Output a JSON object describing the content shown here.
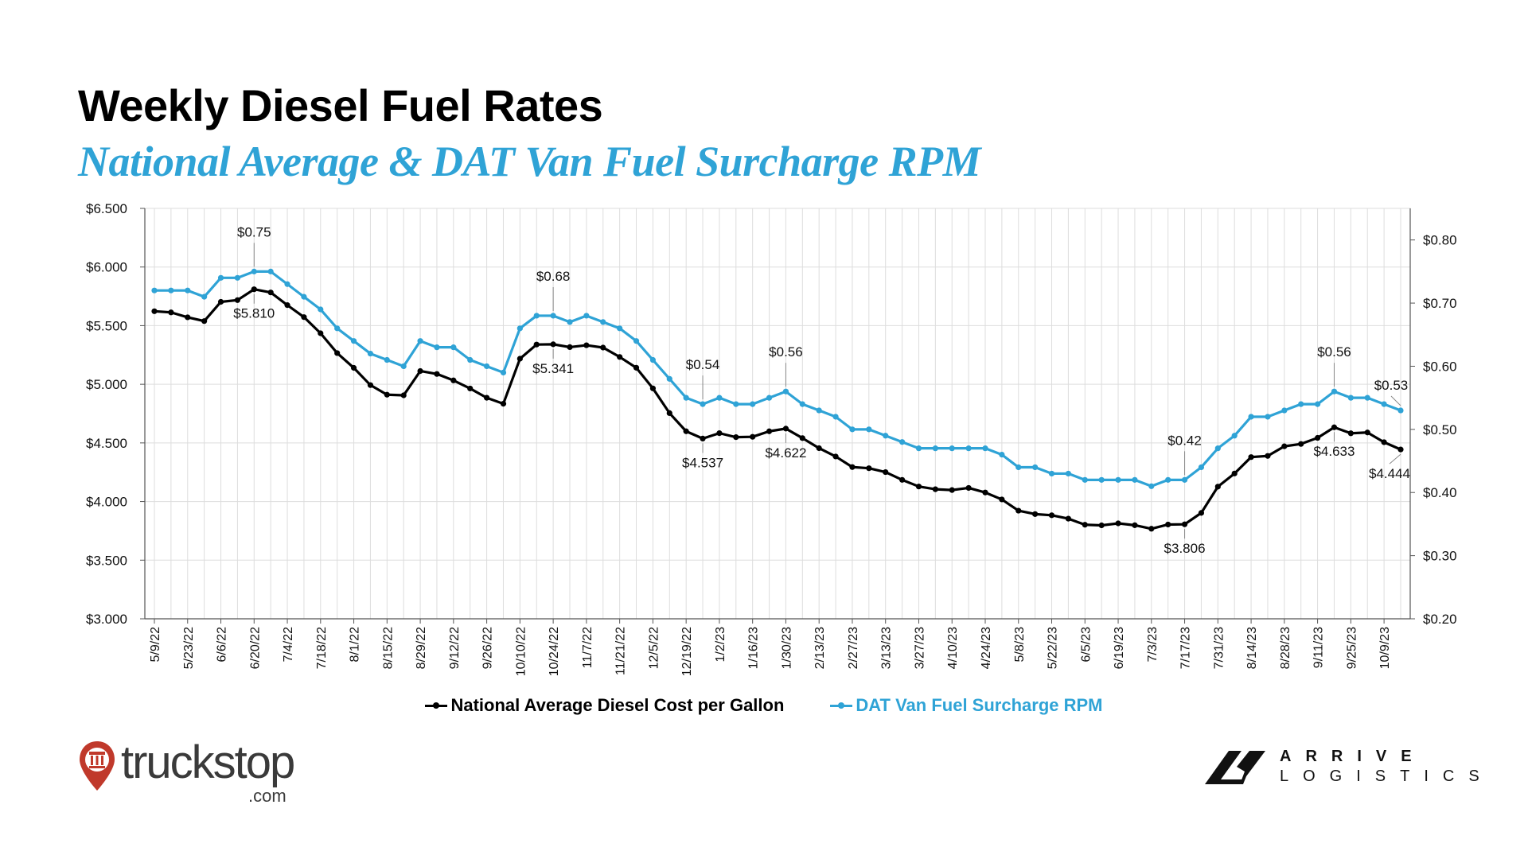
{
  "header": {
    "title": "Weekly Diesel Fuel Rates",
    "subtitle": "National Average & DAT Van Fuel Surcharge RPM"
  },
  "colors": {
    "diesel": "#000000",
    "surcharge": "#2fa3d6",
    "grid": "#dddddd"
  },
  "chart_data": {
    "type": "line",
    "x_tick_labels": [
      "5/9/22",
      "5/23/22",
      "6/6/22",
      "6/20/22",
      "7/4/22",
      "7/18/22",
      "8/1/22",
      "8/15/22",
      "8/29/22",
      "9/12/22",
      "9/26/22",
      "10/10/22",
      "10/24/22",
      "11/7/22",
      "11/21/22",
      "12/5/22",
      "12/19/22",
      "1/2/23",
      "1/16/23",
      "1/30/23",
      "2/13/23",
      "2/27/23",
      "3/13/23",
      "3/27/23",
      "4/10/23",
      "4/24/23",
      "5/8/23",
      "5/22/23",
      "6/5/23",
      "6/19/23",
      "7/3/23",
      "7/17/23",
      "7/31/23",
      "8/14/23",
      "8/28/23",
      "9/11/23",
      "9/25/23",
      "10/9/23"
    ],
    "x": [
      "5/9/22",
      "5/16/22",
      "5/23/22",
      "5/30/22",
      "6/6/22",
      "6/13/22",
      "6/20/22",
      "6/27/22",
      "7/4/22",
      "7/11/22",
      "7/18/22",
      "7/25/22",
      "8/1/22",
      "8/8/22",
      "8/15/22",
      "8/22/22",
      "8/29/22",
      "9/5/22",
      "9/12/22",
      "9/19/22",
      "9/26/22",
      "10/3/22",
      "10/10/22",
      "10/17/22",
      "10/24/22",
      "10/31/22",
      "11/7/22",
      "11/14/22",
      "11/21/22",
      "11/28/22",
      "12/5/22",
      "12/12/22",
      "12/19/22",
      "12/26/22",
      "1/2/23",
      "1/9/23",
      "1/16/23",
      "1/23/23",
      "1/30/23",
      "2/6/23",
      "2/13/23",
      "2/20/23",
      "2/27/23",
      "3/6/23",
      "3/13/23",
      "3/20/23",
      "3/27/23",
      "4/3/23",
      "4/10/23",
      "4/17/23",
      "4/24/23",
      "5/1/23",
      "5/8/23",
      "5/15/23",
      "5/22/23",
      "5/29/23",
      "6/5/23",
      "6/12/23",
      "6/19/23",
      "6/26/23",
      "7/3/23",
      "7/10/23",
      "7/17/23",
      "7/24/23",
      "7/31/23",
      "8/7/23",
      "8/14/23",
      "8/21/23",
      "8/28/23",
      "9/4/23",
      "9/11/23",
      "9/18/23",
      "9/25/23",
      "10/2/23",
      "10/9/23",
      "10/16/23"
    ],
    "series": [
      {
        "name": "National Average Diesel Cost per Gallon",
        "axis": "left",
        "color": "#000000",
        "values": [
          5.623,
          5.613,
          5.571,
          5.539,
          5.703,
          5.718,
          5.81,
          5.783,
          5.675,
          5.573,
          5.435,
          5.266,
          5.14,
          4.993,
          4.911,
          4.906,
          5.113,
          5.088,
          5.033,
          4.964,
          4.885,
          4.834,
          5.218,
          5.339,
          5.341,
          5.317,
          5.333,
          5.313,
          5.233,
          5.141,
          4.965,
          4.754,
          4.599,
          4.537,
          4.583,
          4.549,
          4.552,
          4.599,
          4.622,
          4.541,
          4.455,
          4.384,
          4.294,
          4.284,
          4.251,
          4.185,
          4.128,
          4.105,
          4.098,
          4.116,
          4.077,
          4.018,
          3.922,
          3.893,
          3.883,
          3.854,
          3.802,
          3.797,
          3.814,
          3.798,
          3.768,
          3.804,
          3.806,
          3.903,
          4.127,
          4.239,
          4.379,
          4.389,
          4.471,
          4.491,
          4.543,
          4.633,
          4.582,
          4.589,
          4.506,
          4.444
        ]
      },
      {
        "name": "DAT Van Fuel Surcharge RPM",
        "axis": "right",
        "color": "#2fa3d6",
        "values": [
          0.72,
          0.72,
          0.72,
          0.71,
          0.74,
          0.74,
          0.75,
          0.75,
          0.73,
          0.71,
          0.69,
          0.66,
          0.64,
          0.62,
          0.61,
          0.6,
          0.64,
          0.63,
          0.63,
          0.61,
          0.6,
          0.59,
          0.66,
          0.68,
          0.68,
          0.67,
          0.68,
          0.67,
          0.66,
          0.64,
          0.61,
          0.58,
          0.55,
          0.54,
          0.55,
          0.54,
          0.54,
          0.55,
          0.56,
          0.54,
          0.53,
          0.52,
          0.5,
          0.5,
          0.49,
          0.48,
          0.47,
          0.47,
          0.47,
          0.47,
          0.47,
          0.46,
          0.44,
          0.44,
          0.43,
          0.43,
          0.42,
          0.42,
          0.42,
          0.42,
          0.41,
          0.42,
          0.42,
          0.44,
          0.47,
          0.49,
          0.52,
          0.52,
          0.53,
          0.54,
          0.54,
          0.56,
          0.55,
          0.55,
          0.54,
          0.53
        ]
      }
    ],
    "y_left": {
      "ylim": [
        3.0,
        6.5
      ],
      "ticks": [
        "$3.000",
        "$3.500",
        "$4.000",
        "$4.500",
        "$5.000",
        "$5.500",
        "$6.000",
        "$6.500"
      ]
    },
    "y_right": {
      "ylim": [
        0.2,
        0.85
      ],
      "ticks": [
        "$0.20",
        "$0.30",
        "$0.40",
        "$0.50",
        "$0.60",
        "$0.70",
        "$0.80"
      ]
    },
    "annotations": [
      {
        "series": 0,
        "index": 6,
        "text": "$5.810"
      },
      {
        "series": 0,
        "index": 24,
        "text": "$5.341"
      },
      {
        "series": 0,
        "index": 33,
        "text": "$4.537"
      },
      {
        "series": 0,
        "index": 38,
        "text": "$4.622"
      },
      {
        "series": 0,
        "index": 62,
        "text": "$3.806"
      },
      {
        "series": 0,
        "index": 71,
        "text": "$4.633"
      },
      {
        "series": 0,
        "index": 75,
        "text": "$4.444"
      },
      {
        "series": 1,
        "index": 6,
        "text": "$0.75"
      },
      {
        "series": 1,
        "index": 24,
        "text": "$0.68"
      },
      {
        "series": 1,
        "index": 33,
        "text": "$0.54"
      },
      {
        "series": 1,
        "index": 38,
        "text": "$0.56"
      },
      {
        "series": 1,
        "index": 62,
        "text": "$0.42"
      },
      {
        "series": 1,
        "index": 71,
        "text": "$0.56"
      },
      {
        "series": 1,
        "index": 75,
        "text": "$0.53"
      }
    ],
    "grid": true,
    "legend": "bottom-center"
  },
  "legend": {
    "diesel_label": "National Average Diesel Cost per Gallon",
    "surcharge_label": "DAT Van Fuel Surcharge RPM"
  },
  "logos": {
    "truckstop": {
      "name": "truckstop",
      "suffix": ".com",
      "icon": "truckstop-pin-icon"
    },
    "arrive": {
      "line1": "ARRIVE",
      "line2": "LOGISTICS",
      "icon": "arrive-logo-icon"
    }
  }
}
